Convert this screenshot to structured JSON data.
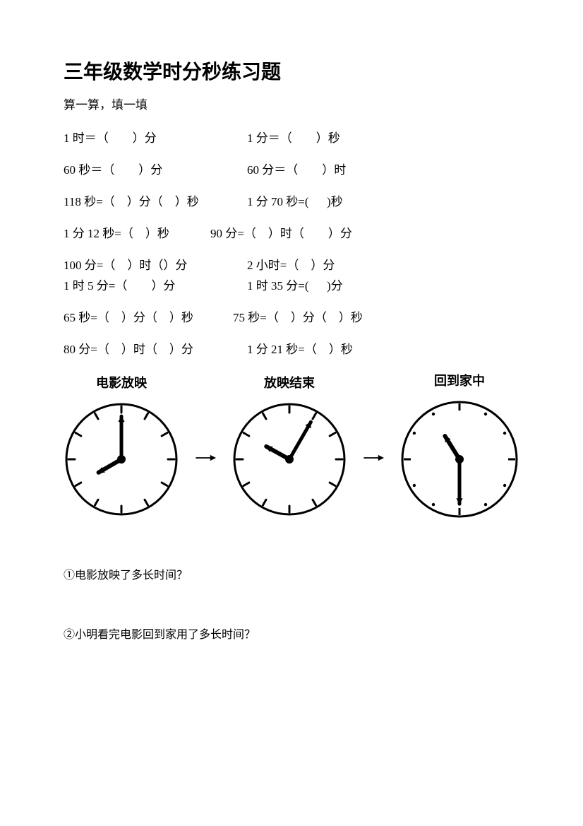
{
  "title": "三年级数学时分秒练习题",
  "subtitle": "算一算，填一填",
  "rows": [
    {
      "c1": " 1 时＝（　　）分",
      "c2": "1 分＝（　　）秒"
    },
    {
      "c1": "60 秒＝（　　）分",
      "c2": "60 分＝（　　）时"
    },
    {
      "c1": "118 秒=（　）分（　）秒",
      "c2": "1 分 70 秒=( 　 )秒"
    },
    {
      "c1": "1 分 12 秒=（　）秒",
      "c2": "90 分=（　）时（　　）分",
      "c1w": 208
    },
    {
      "c1": "100 分=（　）时（）分",
      "c2": " 2 小时=（　）分",
      "tight": true
    },
    {
      "c1": "1 时 5 分=（　　）分",
      "c2": " 1 时 35 分=( 　 )分"
    },
    {
      "c1": "65 秒=（　）分（　）秒",
      "c2": "75 秒=（　）分（　）秒",
      "c1w": 240
    },
    {
      "c1": "80 分=（　）时（　）分",
      "c2": " 1 分 21 秒=（　）秒"
    }
  ],
  "clocks": [
    {
      "label": "电影放映",
      "hourAngle": 240,
      "minuteAngle": 0,
      "radius": 78,
      "tickStyle": "dash"
    },
    {
      "label": "放映结束",
      "hourAngle": 299,
      "minuteAngle": 30,
      "radius": 78,
      "tickStyle": "dash"
    },
    {
      "label": "回到家中",
      "hourAngle": 328,
      "minuteAngle": 180,
      "radius": 81,
      "tickStyle": "dotlong"
    }
  ],
  "arrowColor": "#000000",
  "questions": [
    "①电影放映了多长时间？",
    "②小明看完电影回到家用了多长时间？"
  ]
}
